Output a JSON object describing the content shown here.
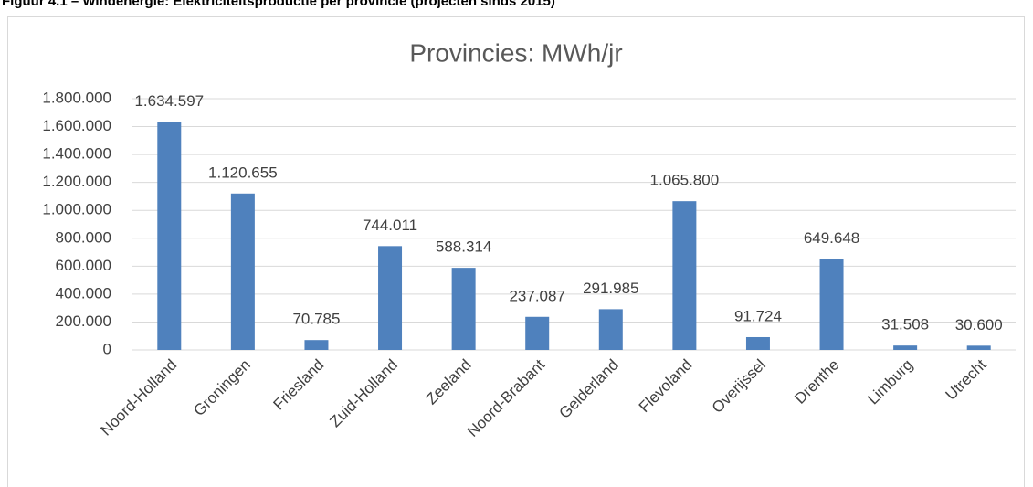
{
  "caption": "Figuur 4.1 – Windenergie: Elektriciteitsproductie per provincie (projecten sinds 2015)",
  "chart_data": {
    "type": "bar",
    "title": "Provincies: MWh/jr",
    "categories": [
      "Noord-Holland",
      "Groningen",
      "Friesland",
      "Zuid-Holland",
      "Zeeland",
      "Noord-Brabant",
      "Gelderland",
      "Flevoland",
      "Overijssel",
      "Drenthe",
      "Limburg",
      "Utrecht"
    ],
    "values": [
      1634597,
      1120655,
      70785,
      744011,
      588314,
      237087,
      291985,
      1065800,
      91724,
      649648,
      31508,
      30600
    ],
    "value_labels": [
      "1.634.597",
      "1.120.655",
      "70.785",
      "744.011",
      "588.314",
      "237.087",
      "291.985",
      "1.065.800",
      "91.724",
      "649.648",
      "31.508",
      "30.600"
    ],
    "color": "#4f81bd",
    "ylim": [
      0,
      1800000
    ],
    "yticks": [
      0,
      {
        "value": 200000,
        "label": "200.000"
      },
      {
        "value": 400000,
        "label": "400.000"
      },
      {
        "value": 600000,
        "label": "600.000"
      },
      {
        "value": 800000,
        "label": "800.000"
      },
      {
        "value": 1000000,
        "label": "1.000.000"
      },
      {
        "value": 1200000,
        "label": "1.200.000"
      },
      {
        "value": 1400000,
        "label": "1.400.000"
      },
      {
        "value": 1600000,
        "label": "1.600.000"
      },
      {
        "value": 1800000,
        "label": "1.800.000"
      }
    ],
    "grid": true
  }
}
